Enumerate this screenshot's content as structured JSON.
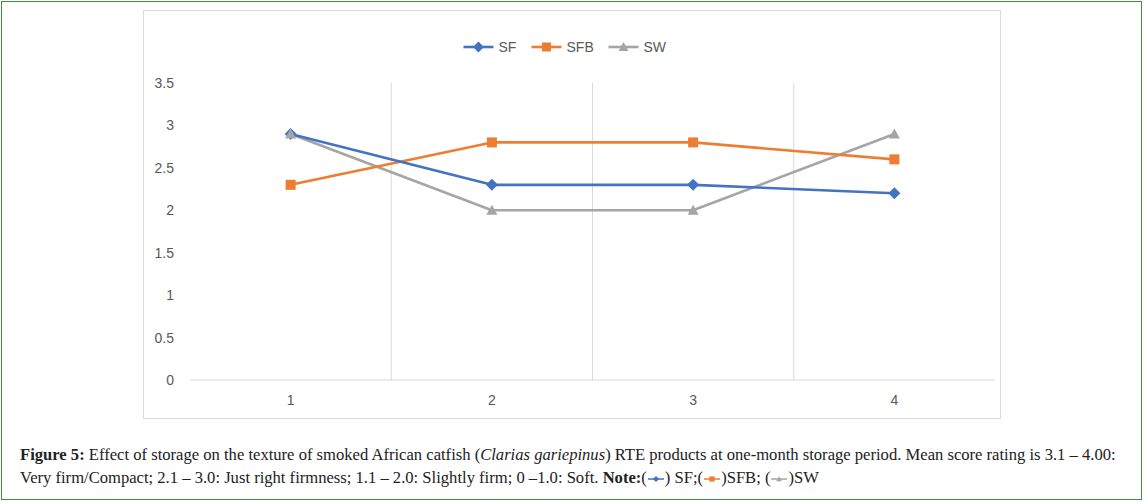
{
  "chart_data": {
    "type": "line",
    "title": "Figure 5: Effect of storage on the texture of smoked African catfish (Clarias gariepinus) RTE products at one-month storage period. Mean score rating is 3.1 – 4.00: Very firm/Compact; 2.1 – 3.0: Just right firmness; 1.1 – 2.0: Slightly firm; 0 –1.0: Soft.",
    "annotations": [
      "Note:",
      "(",
      ") SF;(",
      ")SFB; (",
      ")SW"
    ],
    "categories": [
      "1",
      "2",
      "3",
      "4"
    ],
    "series": [
      {
        "name": "SF",
        "color": "#4472c4",
        "marker": "diamond",
        "values": [
          2.9,
          2.3,
          2.3,
          2.2
        ]
      },
      {
        "name": "SFB",
        "color": "#ed7d31",
        "marker": "square",
        "values": [
          2.3,
          2.8,
          2.8,
          2.6
        ]
      },
      {
        "name": "SW",
        "color": "#a5a5a5",
        "marker": "triangle",
        "values": [
          2.9,
          2.0,
          2.0,
          2.9
        ]
      }
    ],
    "ylim": [
      0,
      3.5
    ],
    "yticks": [
      0,
      0.5,
      1,
      1.5,
      2,
      2.5,
      3,
      3.5
    ],
    "grid": true,
    "legend": "top"
  }
}
